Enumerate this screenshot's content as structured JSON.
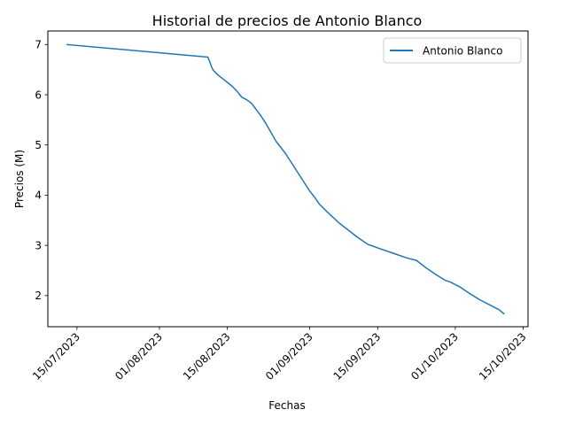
{
  "chart_data": {
    "type": "line",
    "title": "Historial de precios de Antonio Blanco",
    "xlabel": "Fechas",
    "ylabel": "Precios (M)",
    "xlim": [
      "2023-07-09",
      "2023-10-16"
    ],
    "ylim": [
      1.38,
      7.27
    ],
    "x_ticks": [
      {
        "date": "2023-07-15",
        "label": "15/07/2023"
      },
      {
        "date": "2023-08-01",
        "label": "01/08/2023"
      },
      {
        "date": "2023-08-15",
        "label": "15/08/2023"
      },
      {
        "date": "2023-09-01",
        "label": "01/09/2023"
      },
      {
        "date": "2023-09-15",
        "label": "15/09/2023"
      },
      {
        "date": "2023-10-01",
        "label": "01/10/2023"
      },
      {
        "date": "2023-10-15",
        "label": "15/10/2023"
      }
    ],
    "y_ticks": [
      2,
      3,
      4,
      5,
      6,
      7
    ],
    "grid": false,
    "legend_position": "top-right",
    "series": [
      {
        "name": "Antonio Blanco",
        "color": "#1f77b4",
        "points": [
          {
            "x": "2023-07-13",
            "y": 7.0
          },
          {
            "x": "2023-08-11",
            "y": 6.75
          },
          {
            "x": "2023-08-12",
            "y": 6.5
          },
          {
            "x": "2023-08-13",
            "y": 6.4
          },
          {
            "x": "2023-08-16",
            "y": 6.17
          },
          {
            "x": "2023-08-17",
            "y": 6.07
          },
          {
            "x": "2023-08-18",
            "y": 5.95
          },
          {
            "x": "2023-08-19",
            "y": 5.9
          },
          {
            "x": "2023-08-20",
            "y": 5.83
          },
          {
            "x": "2023-08-21",
            "y": 5.7
          },
          {
            "x": "2023-08-22",
            "y": 5.57
          },
          {
            "x": "2023-08-23",
            "y": 5.42
          },
          {
            "x": "2023-08-24",
            "y": 5.25
          },
          {
            "x": "2023-08-25",
            "y": 5.08
          },
          {
            "x": "2023-08-27",
            "y": 4.83
          },
          {
            "x": "2023-08-28",
            "y": 4.68
          },
          {
            "x": "2023-08-30",
            "y": 4.38
          },
          {
            "x": "2023-09-01",
            "y": 4.08
          },
          {
            "x": "2023-09-02",
            "y": 3.96
          },
          {
            "x": "2023-09-03",
            "y": 3.82
          },
          {
            "x": "2023-09-05",
            "y": 3.63
          },
          {
            "x": "2023-09-07",
            "y": 3.45
          },
          {
            "x": "2023-09-09",
            "y": 3.3
          },
          {
            "x": "2023-09-11",
            "y": 3.15
          },
          {
            "x": "2023-09-13",
            "y": 3.02
          },
          {
            "x": "2023-09-15",
            "y": 2.95
          },
          {
            "x": "2023-09-18",
            "y": 2.85
          },
          {
            "x": "2023-09-21",
            "y": 2.75
          },
          {
            "x": "2023-09-23",
            "y": 2.7
          },
          {
            "x": "2023-09-25",
            "y": 2.55
          },
          {
            "x": "2023-09-27",
            "y": 2.42
          },
          {
            "x": "2023-09-29",
            "y": 2.3
          },
          {
            "x": "2023-09-30",
            "y": 2.27
          },
          {
            "x": "2023-10-02",
            "y": 2.17
          },
          {
            "x": "2023-10-04",
            "y": 2.04
          },
          {
            "x": "2023-10-06",
            "y": 1.92
          },
          {
            "x": "2023-10-08",
            "y": 1.82
          },
          {
            "x": "2023-10-10",
            "y": 1.72
          },
          {
            "x": "2023-10-11",
            "y": 1.64
          }
        ]
      }
    ]
  }
}
